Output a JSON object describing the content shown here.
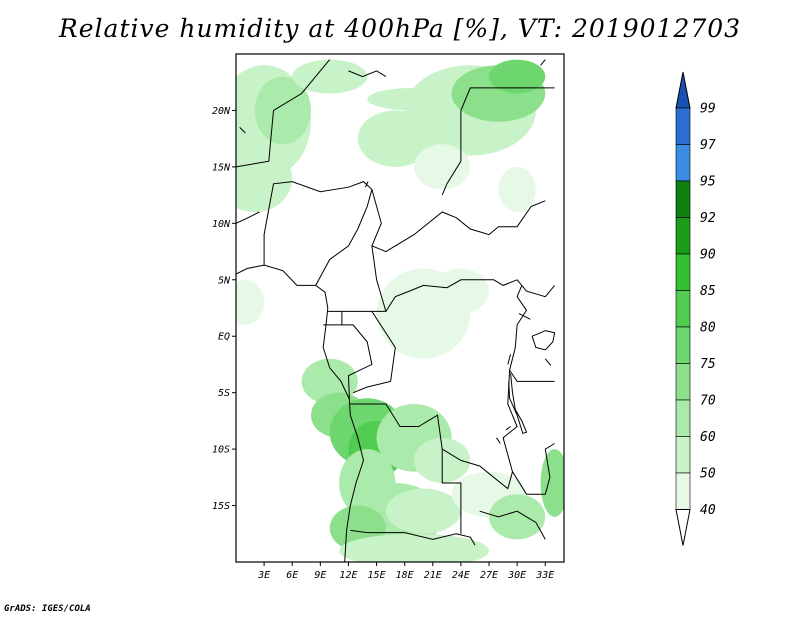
{
  "title": "Relative humidity at 400hPa [%], VT: 2019012703",
  "credit": "GrADS: IGES/COLA",
  "map": {
    "lon_range": [
      0,
      35
    ],
    "lat_range": [
      -20,
      25
    ],
    "lat_ticks": [
      {
        "value": 20,
        "label": "20N"
      },
      {
        "value": 15,
        "label": "15N"
      },
      {
        "value": 10,
        "label": "10N"
      },
      {
        "value": 5,
        "label": "5N"
      },
      {
        "value": 0,
        "label": "EQ"
      },
      {
        "value": -5,
        "label": "5S"
      },
      {
        "value": -10,
        "label": "10S"
      },
      {
        "value": -15,
        "label": "15S"
      }
    ],
    "lon_ticks": [
      {
        "value": 3,
        "label": "3E"
      },
      {
        "value": 6,
        "label": "6E"
      },
      {
        "value": 9,
        "label": "9E"
      },
      {
        "value": 12,
        "label": "12E"
      },
      {
        "value": 15,
        "label": "15E"
      },
      {
        "value": 18,
        "label": "18E"
      },
      {
        "value": 21,
        "label": "21E"
      },
      {
        "value": 24,
        "label": "24E"
      },
      {
        "value": 27,
        "label": "27E"
      },
      {
        "value": 30,
        "label": "30E"
      },
      {
        "value": 33,
        "label": "33E"
      }
    ]
  },
  "colorbar": {
    "levels": [
      "40",
      "50",
      "60",
      "70",
      "75",
      "80",
      "85",
      "90",
      "92",
      "95",
      "97",
      "99"
    ],
    "colors": [
      "#ffffff",
      "#e6f9e6",
      "#c8f2c8",
      "#aaeaaa",
      "#8ce08c",
      "#6ed66e",
      "#50cc50",
      "#32bf32",
      "#1a9e1a",
      "#0f7f0f",
      "#3c8ce6",
      "#2a6ed2",
      "#1a50b4"
    ]
  }
}
